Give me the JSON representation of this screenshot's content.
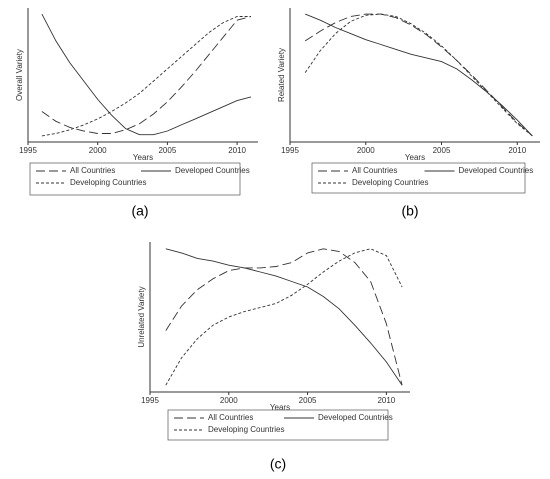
{
  "chart_data": [
    {
      "type": "line",
      "caption": "(a)",
      "x_label": "Years",
      "y_label": "Overall Variety",
      "x": [
        1996,
        1997,
        1998,
        1999,
        2000,
        2001,
        2002,
        2003,
        2004,
        2005,
        2006,
        2007,
        2008,
        2009,
        2010,
        2011
      ],
      "xlim": [
        1995,
        2011.5
      ],
      "xticks": [
        1995,
        2000,
        2005,
        2010
      ],
      "ylim": [
        -0.05,
        1.05
      ],
      "series": [
        {
          "name": "All Countries",
          "color": "#333333",
          "dash": "9,4",
          "values": [
            0.2,
            0.12,
            0.07,
            0.04,
            0.02,
            0.02,
            0.05,
            0.1,
            0.18,
            0.28,
            0.4,
            0.53,
            0.67,
            0.81,
            0.95,
            0.98
          ]
        },
        {
          "name": "Developed Countries",
          "color": "#333333",
          "dash": "none",
          "values": [
            1.0,
            0.78,
            0.6,
            0.45,
            0.3,
            0.17,
            0.06,
            0.01,
            0.01,
            0.04,
            0.09,
            0.14,
            0.19,
            0.24,
            0.29,
            0.32
          ]
        },
        {
          "name": "Developing Countries",
          "color": "#333333",
          "dash": "3,2",
          "values": [
            0.0,
            0.02,
            0.05,
            0.09,
            0.14,
            0.2,
            0.27,
            0.35,
            0.45,
            0.55,
            0.65,
            0.75,
            0.85,
            0.93,
            0.98,
            0.98
          ]
        }
      ]
    },
    {
      "type": "line",
      "caption": "(b)",
      "x_label": "Years",
      "y_label": "Related Variety",
      "x": [
        1996,
        1997,
        1998,
        1999,
        2000,
        2001,
        2002,
        2003,
        2004,
        2005,
        2006,
        2007,
        2008,
        2009,
        2010,
        2011
      ],
      "xlim": [
        1995,
        2011.5
      ],
      "xticks": [
        1995,
        2000,
        2005,
        2010
      ],
      "ylim": [
        -0.05,
        1.05
      ],
      "series": [
        {
          "name": "All Countries",
          "color": "#333333",
          "dash": "9,4",
          "values": [
            0.78,
            0.86,
            0.93,
            0.98,
            1.0,
            1.0,
            0.97,
            0.91,
            0.83,
            0.73,
            0.62,
            0.5,
            0.37,
            0.24,
            0.11,
            0.0
          ]
        },
        {
          "name": "Developed Countries",
          "color": "#333333",
          "dash": "none",
          "values": [
            1.0,
            0.95,
            0.89,
            0.84,
            0.79,
            0.75,
            0.71,
            0.67,
            0.64,
            0.61,
            0.55,
            0.46,
            0.36,
            0.25,
            0.13,
            0.0
          ]
        },
        {
          "name": "Developing Countries",
          "color": "#333333",
          "dash": "3,2",
          "values": [
            0.52,
            0.7,
            0.84,
            0.94,
            0.99,
            1.0,
            0.98,
            0.92,
            0.84,
            0.74,
            0.62,
            0.49,
            0.36,
            0.23,
            0.1,
            0.0
          ]
        }
      ]
    },
    {
      "type": "line",
      "caption": "(c)",
      "x_label": "Years",
      "y_label": "Unrelated Variety",
      "x": [
        1996,
        1997,
        1998,
        1999,
        2000,
        2001,
        2002,
        2003,
        2004,
        2005,
        2006,
        2007,
        2008,
        2009,
        2010,
        2011
      ],
      "xlim": [
        1995,
        2011.5
      ],
      "xticks": [
        1995,
        2000,
        2005,
        2010
      ],
      "ylim": [
        -0.05,
        1.05
      ],
      "series": [
        {
          "name": "All Countries",
          "color": "#333333",
          "dash": "9,4",
          "values": [
            0.4,
            0.58,
            0.7,
            0.78,
            0.84,
            0.86,
            0.86,
            0.87,
            0.9,
            0.97,
            1.0,
            0.98,
            0.9,
            0.76,
            0.45,
            0.0
          ]
        },
        {
          "name": "Developed Countries",
          "color": "#333333",
          "dash": "none",
          "values": [
            1.0,
            0.97,
            0.93,
            0.91,
            0.88,
            0.86,
            0.83,
            0.8,
            0.76,
            0.72,
            0.65,
            0.56,
            0.44,
            0.31,
            0.17,
            0.0
          ]
        },
        {
          "name": "Developing Countries",
          "color": "#333333",
          "dash": "3,2",
          "values": [
            0.0,
            0.2,
            0.34,
            0.44,
            0.5,
            0.54,
            0.57,
            0.6,
            0.66,
            0.74,
            0.83,
            0.91,
            0.97,
            1.0,
            0.95,
            0.72
          ]
        }
      ]
    }
  ]
}
